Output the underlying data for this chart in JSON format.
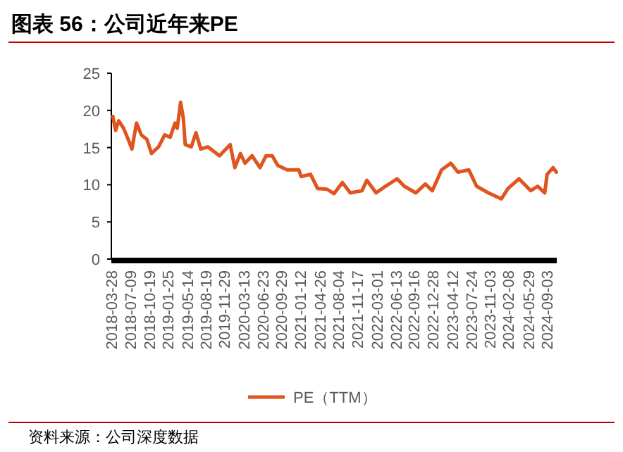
{
  "chart_data": {
    "type": "line",
    "title": "图表 56：公司近年来PE",
    "x": [
      "2018-04-05",
      "2018-04-20",
      "2018-05-07",
      "2018-06-02",
      "2018-06-27",
      "2018-07-17",
      "2018-08-11",
      "2018-09-06",
      "2018-10-06",
      "2018-10-31",
      "2018-12-08",
      "2019-01-10",
      "2019-02-09",
      "2019-03-07",
      "2019-03-19",
      "2019-04-06",
      "2019-04-21",
      "2019-05-01",
      "2019-06-03",
      "2019-06-28",
      "2019-07-24",
      "2019-08-31",
      "2019-11-02",
      "2019-12-30",
      "2020-01-24",
      "2020-02-23",
      "2020-03-19",
      "2020-04-26",
      "2020-06-08",
      "2020-07-11",
      "2020-08-13",
      "2020-09-12",
      "2020-11-02",
      "2021-01-04",
      "2021-01-16",
      "2021-03-08",
      "2021-04-15",
      "2021-06-05",
      "2021-07-13",
      "2021-08-27",
      "2021-10-09",
      "2021-12-11",
      "2022-01-06",
      "2022-02-25",
      "2022-04-17",
      "2022-06-19",
      "2022-07-27",
      "2022-09-28",
      "2022-11-18",
      "2022-12-26",
      "2023-02-14",
      "2023-04-05",
      "2023-05-13",
      "2023-07-11",
      "2023-08-22",
      "2023-10-25",
      "2024-01-03",
      "2024-02-08",
      "2024-04-07",
      "2024-06-09",
      "2024-07-17",
      "2024-08-24",
      "2024-09-06",
      "2024-10-08",
      "2024-10-26"
    ],
    "series": [
      {
        "name": "PE（TTM）",
        "color": "#e0541f",
        "values": [
          19.2,
          17.3,
          18.6,
          17.6,
          16.1,
          14.8,
          18.3,
          16.7,
          16.1,
          14.2,
          15.1,
          16.7,
          16.4,
          18.3,
          17.6,
          21.1,
          18.9,
          15.4,
          15.1,
          17.0,
          14.8,
          15.1,
          13.9,
          15.4,
          12.3,
          14.2,
          12.9,
          13.9,
          12.3,
          13.9,
          13.9,
          12.6,
          12.0,
          12.0,
          11.1,
          11.4,
          9.5,
          9.4,
          8.8,
          10.3,
          8.9,
          9.2,
          10.6,
          8.9,
          9.8,
          10.8,
          9.8,
          8.9,
          10.1,
          9.2,
          12.0,
          12.9,
          11.7,
          12.0,
          9.8,
          8.9,
          8.1,
          9.5,
          10.8,
          9.2,
          9.8,
          8.9,
          11.4,
          12.3,
          11.7
        ]
      }
    ],
    "xlim": [
      "2018-03-28",
      "2024-10-28"
    ],
    "xticks": [
      "2018-03-28",
      "2018-07-09",
      "2018-10-19",
      "2019-01-25",
      "2019-05-14",
      "2019-08-19",
      "2019-11-29",
      "2020-03-13",
      "2020-06-23",
      "2020-09-29",
      "2021-01-12",
      "2021-04-26",
      "2021-08-04",
      "2021-11-17",
      "2022-03-01",
      "2022-06-13",
      "2022-09-16",
      "2022-12-28",
      "2023-04-12",
      "2023-07-24",
      "2023-11-03",
      "2024-02-08",
      "2024-05-29",
      "2024-09-03"
    ],
    "ylim": [
      0,
      25
    ],
    "yticks": [
      0,
      5,
      10,
      15,
      20,
      25
    ],
    "grid": false,
    "legend": "bottom",
    "marker": "none",
    "line_style": "solid",
    "annotations": [
      "资料来源：公司深度数据"
    ]
  }
}
